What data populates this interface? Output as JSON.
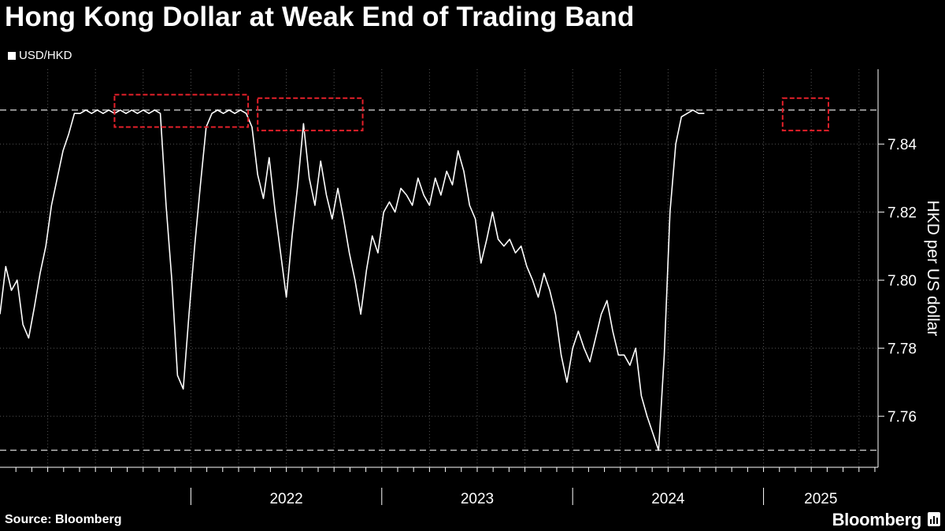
{
  "title": "Hong Kong Dollar at Weak End of Trading Band",
  "legend": {
    "label": "USD/HKD",
    "color": "#ffffff"
  },
  "source": "Source: Bloomberg",
  "brand": "Bloomberg",
  "chart_data": {
    "type": "line",
    "ylabel": "HKD per US dollar",
    "ylim": [
      7.745,
      7.862
    ],
    "yticks": [
      7.76,
      7.78,
      7.8,
      7.82,
      7.84
    ],
    "ytick_labels": [
      "7.76",
      "7.78",
      "7.80",
      "7.82",
      "7.84"
    ],
    "xlim": [
      2021.0,
      2025.6
    ],
    "x_labels": [
      {
        "label": "2022",
        "x": 2022.5
      },
      {
        "label": "2023",
        "x": 2023.5
      },
      {
        "label": "2024",
        "x": 2024.5
      },
      {
        "label": "2025",
        "x": 2025.3
      }
    ],
    "year_boundaries": [
      2022.0,
      2023.0,
      2024.0,
      2025.0
    ],
    "reference_lines": [
      7.85,
      7.75
    ],
    "highlight_boxes": [
      {
        "x0": 2021.6,
        "x1": 2022.3,
        "y0": 7.845,
        "y1": 7.8545
      },
      {
        "x0": 2022.35,
        "x1": 2022.9,
        "y0": 7.844,
        "y1": 7.8535
      },
      {
        "x0": 2025.1,
        "x1": 2025.34,
        "y0": 7.844,
        "y1": 7.8535
      }
    ],
    "grid": true,
    "series": [
      {
        "color": "#ffffff",
        "points": [
          [
            2021.0,
            7.79
          ],
          [
            2021.03,
            7.804
          ],
          [
            2021.06,
            7.797
          ],
          [
            2021.09,
            7.8
          ],
          [
            2021.12,
            7.787
          ],
          [
            2021.15,
            7.783
          ],
          [
            2021.18,
            7.792
          ],
          [
            2021.21,
            7.802
          ],
          [
            2021.24,
            7.81
          ],
          [
            2021.27,
            7.822
          ],
          [
            2021.3,
            7.83
          ],
          [
            2021.33,
            7.838
          ],
          [
            2021.36,
            7.843
          ],
          [
            2021.39,
            7.849
          ],
          [
            2021.42,
            7.849
          ],
          [
            2021.45,
            7.85
          ],
          [
            2021.48,
            7.849
          ],
          [
            2021.51,
            7.85
          ],
          [
            2021.54,
            7.849
          ],
          [
            2021.57,
            7.85
          ],
          [
            2021.6,
            7.849
          ],
          [
            2021.63,
            7.85
          ],
          [
            2021.66,
            7.849
          ],
          [
            2021.69,
            7.85
          ],
          [
            2021.72,
            7.849
          ],
          [
            2021.75,
            7.85
          ],
          [
            2021.78,
            7.849
          ],
          [
            2021.81,
            7.85
          ],
          [
            2021.84,
            7.849
          ],
          [
            2021.87,
            7.822
          ],
          [
            2021.9,
            7.8
          ],
          [
            2021.93,
            7.772
          ],
          [
            2021.96,
            7.768
          ],
          [
            2021.99,
            7.79
          ],
          [
            2022.02,
            7.81
          ],
          [
            2022.05,
            7.828
          ],
          [
            2022.08,
            7.845
          ],
          [
            2022.11,
            7.849
          ],
          [
            2022.14,
            7.85
          ],
          [
            2022.17,
            7.849
          ],
          [
            2022.2,
            7.85
          ],
          [
            2022.23,
            7.849
          ],
          [
            2022.26,
            7.85
          ],
          [
            2022.29,
            7.849
          ],
          [
            2022.32,
            7.845
          ],
          [
            2022.35,
            7.831
          ],
          [
            2022.38,
            7.824
          ],
          [
            2022.41,
            7.836
          ],
          [
            2022.44,
            7.821
          ],
          [
            2022.47,
            7.808
          ],
          [
            2022.5,
            7.795
          ],
          [
            2022.53,
            7.813
          ],
          [
            2022.56,
            7.828
          ],
          [
            2022.59,
            7.846
          ],
          [
            2022.62,
            7.83
          ],
          [
            2022.65,
            7.822
          ],
          [
            2022.68,
            7.835
          ],
          [
            2022.71,
            7.825
          ],
          [
            2022.74,
            7.818
          ],
          [
            2022.77,
            7.827
          ],
          [
            2022.8,
            7.818
          ],
          [
            2022.83,
            7.808
          ],
          [
            2022.86,
            7.8
          ],
          [
            2022.89,
            7.79
          ],
          [
            2022.92,
            7.803
          ],
          [
            2022.95,
            7.813
          ],
          [
            2022.98,
            7.808
          ],
          [
            2023.01,
            7.82
          ],
          [
            2023.04,
            7.823
          ],
          [
            2023.07,
            7.82
          ],
          [
            2023.1,
            7.827
          ],
          [
            2023.13,
            7.825
          ],
          [
            2023.16,
            7.822
          ],
          [
            2023.19,
            7.83
          ],
          [
            2023.22,
            7.825
          ],
          [
            2023.25,
            7.822
          ],
          [
            2023.28,
            7.83
          ],
          [
            2023.31,
            7.825
          ],
          [
            2023.34,
            7.832
          ],
          [
            2023.37,
            7.828
          ],
          [
            2023.4,
            7.838
          ],
          [
            2023.43,
            7.832
          ],
          [
            2023.46,
            7.822
          ],
          [
            2023.49,
            7.818
          ],
          [
            2023.52,
            7.805
          ],
          [
            2023.55,
            7.812
          ],
          [
            2023.58,
            7.82
          ],
          [
            2023.61,
            7.812
          ],
          [
            2023.64,
            7.81
          ],
          [
            2023.67,
            7.812
          ],
          [
            2023.7,
            7.808
          ],
          [
            2023.73,
            7.81
          ],
          [
            2023.76,
            7.804
          ],
          [
            2023.79,
            7.8
          ],
          [
            2023.82,
            7.795
          ],
          [
            2023.85,
            7.802
          ],
          [
            2023.88,
            7.797
          ],
          [
            2023.91,
            7.79
          ],
          [
            2023.94,
            7.778
          ],
          [
            2023.97,
            7.77
          ],
          [
            2024.0,
            7.78
          ],
          [
            2024.03,
            7.785
          ],
          [
            2024.06,
            7.78
          ],
          [
            2024.09,
            7.776
          ],
          [
            2024.12,
            7.783
          ],
          [
            2024.15,
            7.79
          ],
          [
            2024.18,
            7.794
          ],
          [
            2024.21,
            7.785
          ],
          [
            2024.24,
            7.778
          ],
          [
            2024.27,
            7.778
          ],
          [
            2024.3,
            7.775
          ],
          [
            2024.33,
            7.78
          ],
          [
            2024.36,
            7.766
          ],
          [
            2024.39,
            7.76
          ],
          [
            2024.42,
            7.755
          ],
          [
            2024.45,
            7.75
          ],
          [
            2024.48,
            7.778
          ],
          [
            2024.51,
            7.82
          ],
          [
            2024.54,
            7.84
          ],
          [
            2024.57,
            7.848
          ],
          [
            2024.6,
            7.849
          ],
          [
            2024.63,
            7.85
          ],
          [
            2024.66,
            7.849
          ],
          [
            2024.69,
            7.849
          ]
        ]
      }
    ]
  }
}
